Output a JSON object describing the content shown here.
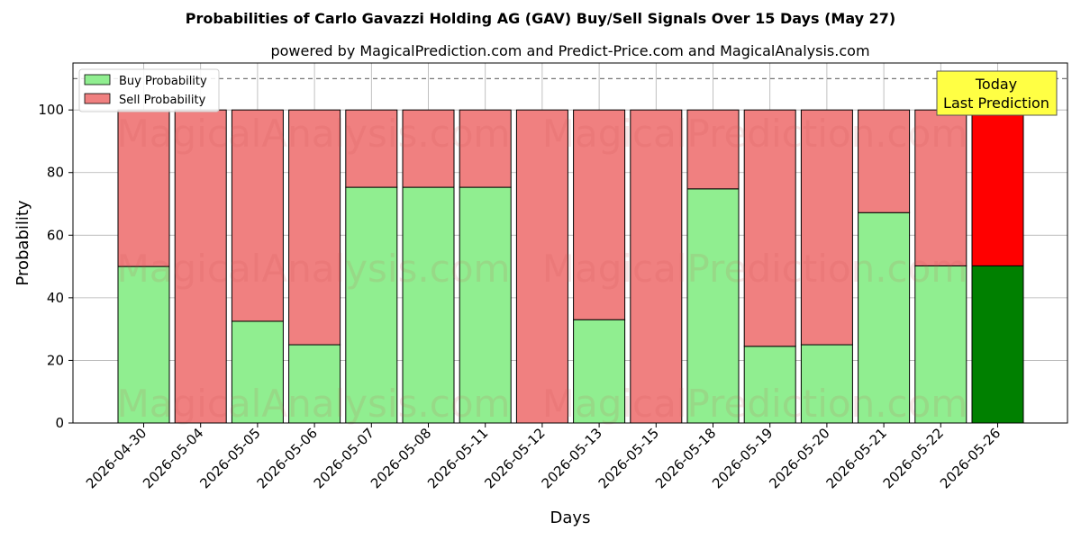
{
  "chart_data": {
    "type": "bar",
    "stacked": true,
    "title": "Probabilities of Carlo Gavazzi Holding AG (GAV) Buy/Sell Signals Over 15 Days (May 27)",
    "subtitle": "powered by MagicalPrediction.com and Predict-Price.com and MagicalAnalysis.com",
    "xlabel": "Days",
    "ylabel": "Probability",
    "ylim": [
      0,
      115
    ],
    "yticks": [
      0,
      20,
      40,
      60,
      80,
      100
    ],
    "reference_line": 110,
    "grid": true,
    "legend_position": "top-left",
    "categories": [
      "2026-04-30",
      "2026-05-04",
      "2026-05-05",
      "2026-05-06",
      "2026-05-07",
      "2026-05-08",
      "2026-05-11",
      "2026-05-12",
      "2026-05-13",
      "2026-05-15",
      "2026-05-18",
      "2026-05-19",
      "2026-05-20",
      "2026-05-21",
      "2026-05-22",
      "2026-05-26"
    ],
    "series": [
      {
        "name": "Buy Probability",
        "color": "#90ee90",
        "highlight_color": "#008000",
        "values": [
          50,
          0,
          32.5,
          25,
          75.3,
          75.3,
          75.3,
          0,
          33,
          0,
          74.8,
          24.5,
          25,
          67.2,
          50.2,
          50.2
        ]
      },
      {
        "name": "Sell Probability",
        "color": "#f08080",
        "highlight_color": "#ff0000",
        "values": [
          50,
          100,
          67.5,
          75,
          24.7,
          24.7,
          24.7,
          100,
          67,
          100,
          25.2,
          75.5,
          75,
          32.8,
          49.8,
          49.8
        ]
      }
    ],
    "highlight_index": 15,
    "annotation": {
      "line1": "Today",
      "line2": "Last Prediction",
      "color": "#ffff44"
    },
    "watermarks": [
      "MagicalAnalysis.com",
      "MagicalPrediction.com"
    ]
  }
}
